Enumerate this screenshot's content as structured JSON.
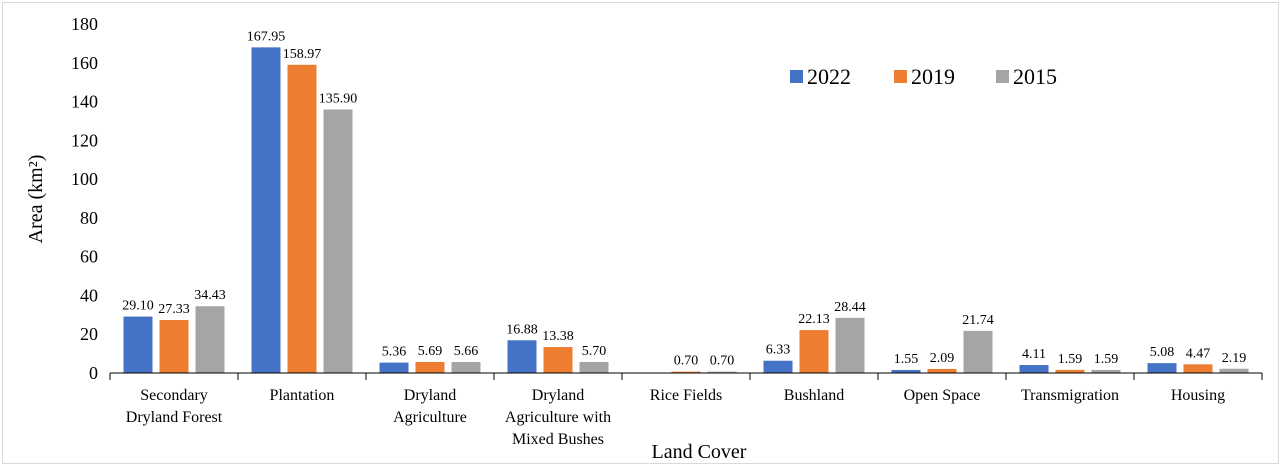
{
  "chart_data": {
    "type": "bar",
    "categories": [
      [
        "Secondary",
        "Dryland Forest"
      ],
      [
        "Plantation"
      ],
      [
        "Dryland",
        "Agriculture"
      ],
      [
        "Dryland",
        "Agriculture with",
        "Mixed Bushes"
      ],
      [
        "Rice Fields"
      ],
      [
        "Bushland"
      ],
      [
        "Open Space"
      ],
      [
        "Transmigration"
      ],
      [
        "Housing"
      ]
    ],
    "series": [
      {
        "name": "2022",
        "color": "#4472C4",
        "values": [
          29.1,
          167.95,
          5.36,
          16.88,
          null,
          6.33,
          1.55,
          4.11,
          5.08
        ],
        "labels": [
          "29.10",
          "167.95",
          "5.36",
          "16.88",
          "",
          "6.33",
          "1.55",
          "4.11",
          "5.08"
        ]
      },
      {
        "name": "2019",
        "color": "#ED7D31",
        "values": [
          27.33,
          158.97,
          5.69,
          13.38,
          0.7,
          22.13,
          2.09,
          1.59,
          4.47
        ],
        "labels": [
          "27.33",
          "158.97",
          "5.69",
          "13.38",
          "0.70",
          "22.13",
          "2.09",
          "1.59",
          "4.47"
        ]
      },
      {
        "name": "2015",
        "color": "#A5A5A5",
        "values": [
          34.43,
          135.9,
          5.66,
          5.7,
          0.7,
          28.44,
          21.74,
          1.59,
          2.19
        ],
        "labels": [
          "34.43",
          "135.90",
          "5.66",
          "5.70",
          "0.70",
          "28.44",
          "21.74",
          "1.59",
          "2.19"
        ]
      }
    ],
    "xlabel": "Land Cover",
    "ylabel": "Area (km²)",
    "ylim": [
      0,
      180
    ],
    "yticks": [
      "0",
      "20",
      "40",
      "60",
      "80",
      "100",
      "120",
      "140",
      "160",
      "180"
    ],
    "grid": false,
    "legend_position": "top-right"
  }
}
